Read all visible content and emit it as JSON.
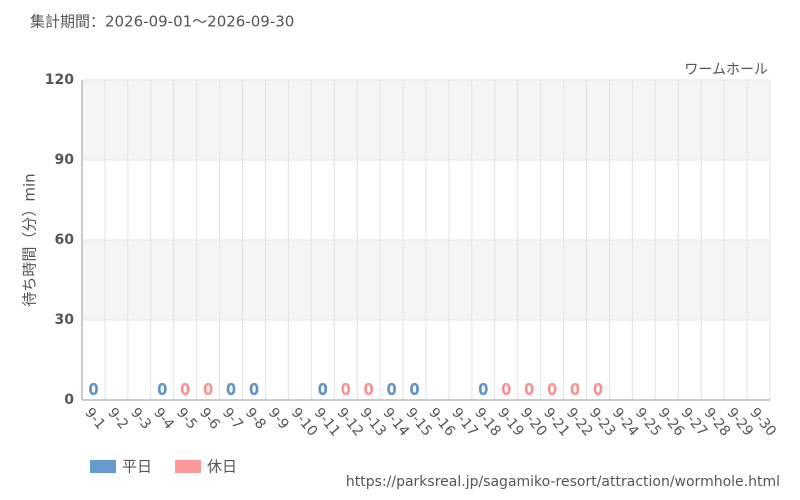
{
  "chart_data": {
    "type": "bar",
    "title": "集計期間：2026-09-01～2026-09-30",
    "subtitle": "ワームホール",
    "y_label": "待ち時間（分）min",
    "source": "https://parksreal.jp/sagamiko-resort/attraction/wormhole.html",
    "categories": [
      "9-1",
      "9-2",
      "9-3",
      "9-4",
      "9-5",
      "9-6",
      "9-7",
      "9-8",
      "9-9",
      "9-10",
      "9-11",
      "9-12",
      "9-13",
      "9-14",
      "9-15",
      "9-16",
      "9-17",
      "9-18",
      "9-19",
      "9-20",
      "9-21",
      "9-22",
      "9-23",
      "9-24",
      "9-25",
      "9-26",
      "9-27",
      "9-28",
      "9-29",
      "9-30"
    ],
    "category_colors": [
      "#555",
      "#555",
      "#555",
      "#555",
      "#ff8888",
      "#ff8888",
      "#555",
      "#555",
      "#555",
      "#555",
      "#555",
      "#ff8888",
      "#ff8888",
      "#555",
      "#555",
      "#555",
      "#555",
      "#555",
      "#ff8888",
      "#ff8888",
      "#ff8888",
      "#ff8888",
      "#ff8888",
      "#555",
      "#555",
      "#ff8888",
      "#ff8888",
      "#555",
      "#555",
      "#555"
    ],
    "series": [
      {
        "name": "平日",
        "color": "#6699cc",
        "values": [
          0,
          null,
          null,
          0,
          null,
          null,
          0,
          0,
          null,
          null,
          0,
          null,
          null,
          0,
          0,
          null,
          null,
          0,
          null,
          null,
          null,
          null,
          null,
          null,
          null,
          null,
          null,
          null,
          null,
          null
        ]
      },
      {
        "name": "休日",
        "color": "#ff9999",
        "values": [
          null,
          null,
          null,
          null,
          0,
          0,
          null,
          null,
          null,
          null,
          null,
          0,
          0,
          null,
          null,
          null,
          null,
          null,
          0,
          0,
          0,
          0,
          0,
          null,
          null,
          null,
          null,
          null,
          null,
          null
        ]
      }
    ],
    "ylim": [
      0,
      120
    ],
    "yticks": [
      0,
      30,
      60,
      90,
      120
    ],
    "grid": true
  }
}
